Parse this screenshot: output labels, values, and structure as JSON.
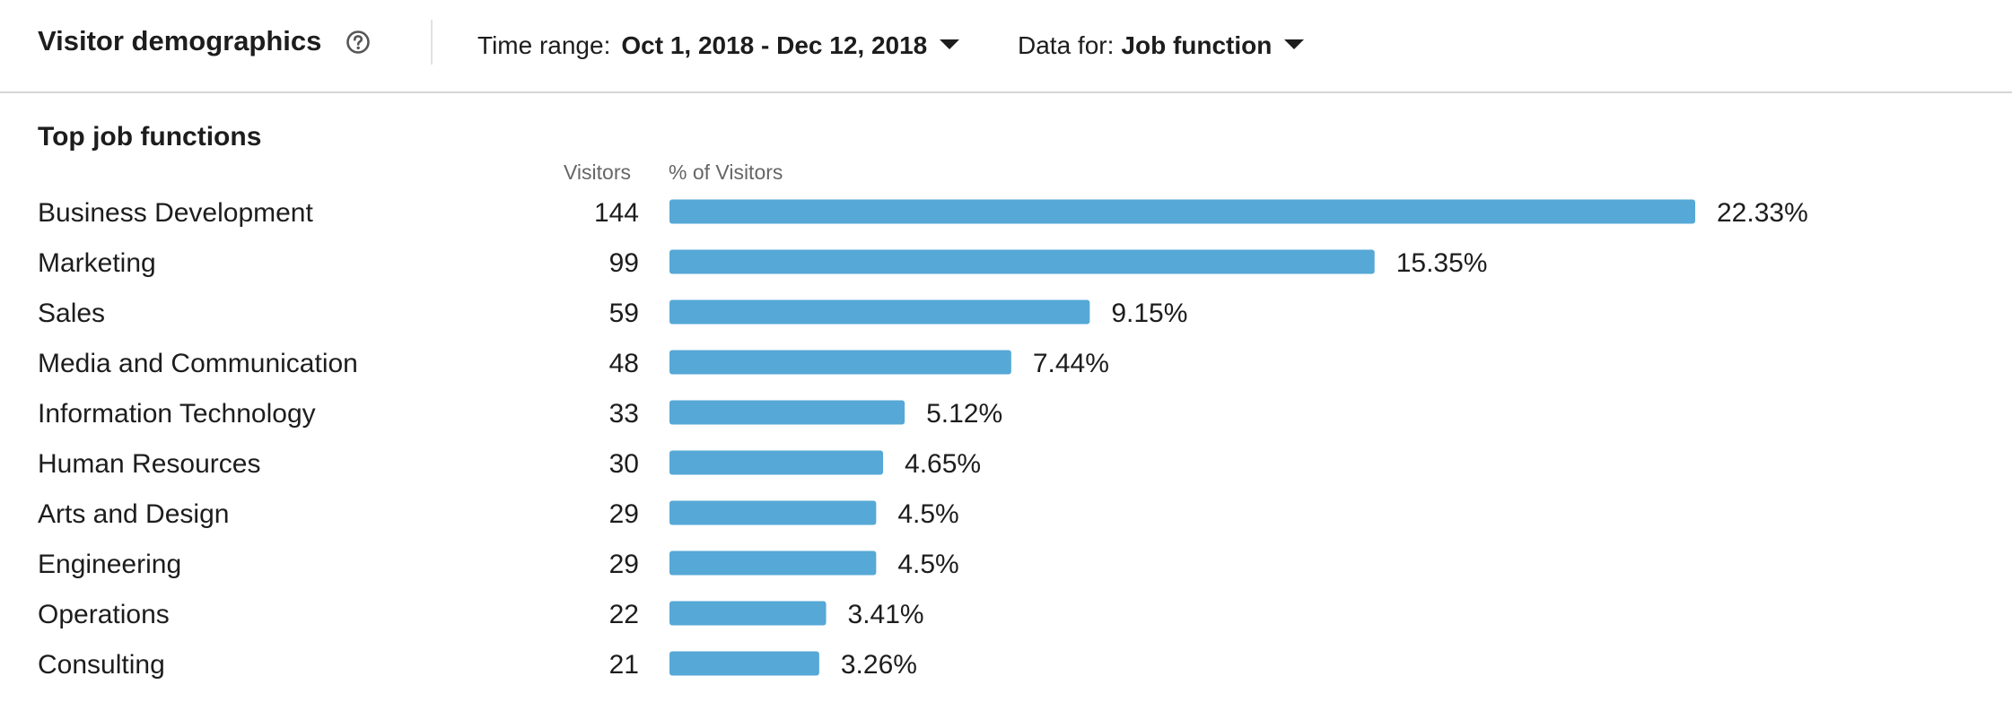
{
  "header": {
    "title": "Visitor demographics",
    "time_range_label": "Time range:",
    "time_range_value": "Oct 1, 2018 - Dec 12, 2018",
    "data_for_label": "Data for:",
    "data_for_value": "Job function"
  },
  "chart_data": {
    "type": "bar",
    "orientation": "horizontal",
    "title": "Top job functions",
    "columns": [
      "Visitors",
      "% of Visitors"
    ],
    "categories": [
      "Business Development",
      "Marketing",
      "Sales",
      "Media and Communication",
      "Information Technology",
      "Human Resources",
      "Arts and Design",
      "Engineering",
      "Operations",
      "Consulting"
    ],
    "visitors": [
      144,
      99,
      59,
      48,
      33,
      30,
      29,
      29,
      22,
      21
    ],
    "percent": [
      22.33,
      15.35,
      9.15,
      7.44,
      5.12,
      4.65,
      4.5,
      4.5,
      3.41,
      3.26
    ],
    "percent_labels": [
      "22.33%",
      "15.35%",
      "9.15%",
      "7.44%",
      "5.12%",
      "4.65%",
      "4.5%",
      "4.5%",
      "3.41%",
      "3.26%"
    ],
    "bar_color": "#56a8d6",
    "grid": false,
    "legend": "none"
  },
  "colors": {
    "text": "#1d1d1d",
    "muted": "#666666",
    "divider": "#d6d6d6"
  },
  "icons": {
    "help": "question-circle-icon",
    "dropdown": "caret-down-icon"
  }
}
